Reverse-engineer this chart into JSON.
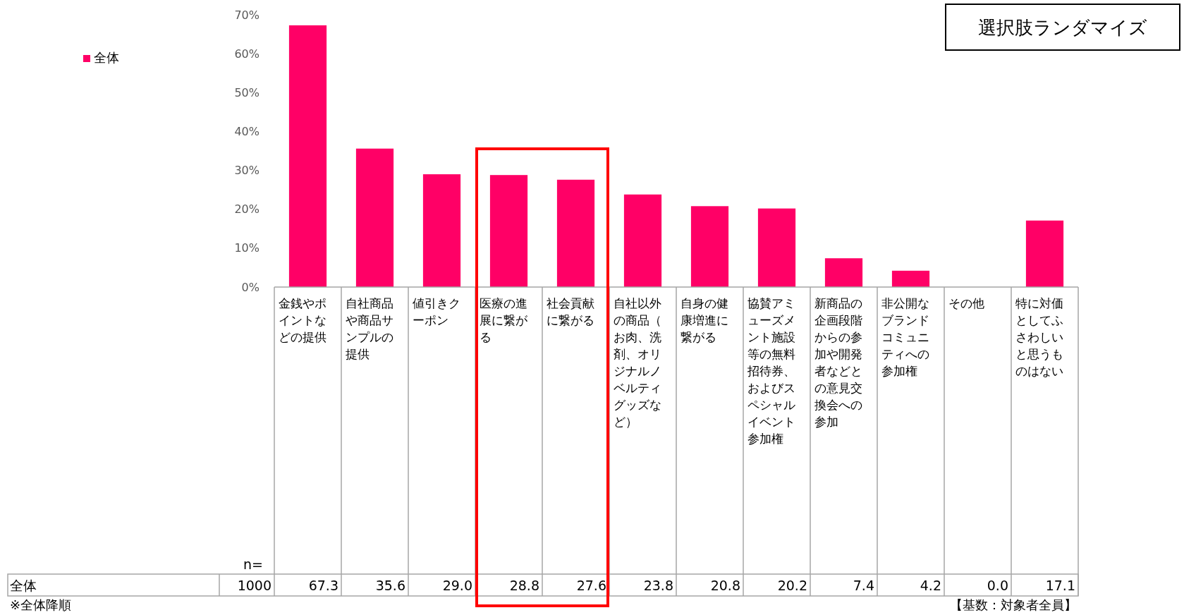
{
  "chart_data": {
    "type": "bar",
    "categories": [
      "金銭やポイントなどの提供",
      "自社商品や商品サンプルの提供",
      "値引きクーポン",
      "医療の進展に繋がる",
      "社会貢献に繋がる",
      "自社以外の商品（お肉、洗剤、オリジナルノベルティグッズなど）",
      "自身の健康増進に繋がる",
      "協賛アミューズメント施設等の無料招待券、およびスペシャルイベント参加権",
      "新商品の企画段階からの参加や開発者などとの意見交換会への参加",
      "非公開なブランドコミュニティへの参加権",
      "その他",
      "特に対価としてふさわしいと思うものはない"
    ],
    "series": [
      {
        "name": "全体",
        "color": "#ff0066",
        "values": [
          67.3,
          35.6,
          29.0,
          28.8,
          27.6,
          23.8,
          20.8,
          20.2,
          7.4,
          4.2,
          0.0,
          17.1
        ],
        "value_labels": [
          "67.3",
          "35.6",
          "29.0",
          "28.8",
          "27.6",
          "23.8",
          "20.8",
          "20.2",
          "7.4",
          "4.2",
          "0.0",
          "17.1"
        ]
      }
    ],
    "ylim": [
      0,
      70
    ],
    "yticks": [
      {
        "value": 0,
        "label": "0%"
      },
      {
        "value": 10,
        "label": "10%"
      },
      {
        "value": 20,
        "label": "20%"
      },
      {
        "value": 30,
        "label": "30%"
      },
      {
        "value": 40,
        "label": "40%"
      },
      {
        "value": 50,
        "label": "50%"
      },
      {
        "value": 60,
        "label": "60%"
      },
      {
        "value": 70,
        "label": "70%"
      }
    ],
    "legend": "top left",
    "annotations": [
      "選択肢ランダマイズ",
      "n=",
      "1000",
      "※全体降順",
      "【基数：対象者全員】"
    ]
  }
}
